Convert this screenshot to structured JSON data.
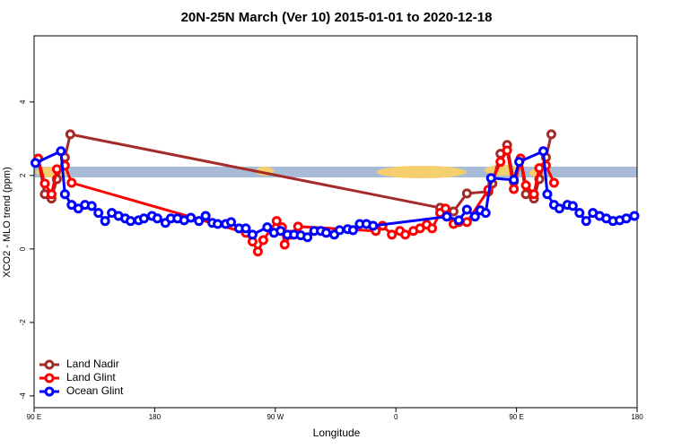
{
  "chart_data": {
    "type": "line",
    "title": "20N-25N March (Ver 10)   2015-01-01 to 2020-12-18",
    "xlabel": "Longitude",
    "ylabel": "XCO2 - MLO trend (ppm)",
    "xlim": [
      90,
      540
    ],
    "ylim": [
      -4.32,
      5.8
    ],
    "xticks": [
      {
        "value": 90,
        "label": "90 E"
      },
      180,
      {
        "value": 270,
        "label": "90 W"
      },
      {
        "value": 360,
        "label": "0"
      },
      {
        "value": 450,
        "label": "90 E"
      },
      {
        "value": 540,
        "label": "180"
      }
    ],
    "yticks": [
      -4,
      -2,
      0,
      2,
      4
    ],
    "legend": "bottom-left",
    "series": [
      {
        "name": "Land Nadir",
        "color": "#a52a2a",
        "x": [
          93,
          98,
          103,
          107,
          113,
          117,
          393,
          403,
          413,
          429,
          432,
          438,
          443,
          448,
          453,
          457,
          463,
          467,
          472,
          476
        ],
        "values": [
          2.46,
          1.49,
          1.37,
          1.9,
          2.49,
          3.12,
          1.12,
          1.02,
          1.51,
          1.56,
          1.78,
          2.59,
          2.83,
          1.83,
          2.46,
          1.49,
          1.37,
          1.9,
          2.49,
          3.12
        ]
      },
      {
        "name": "Land Glint",
        "color": "#ff0000",
        "x": [
          93,
          98,
          103,
          107,
          113,
          118,
          248,
          253,
          257,
          261,
          271,
          275,
          277,
          282,
          287,
          345,
          350,
          357,
          363,
          367,
          373,
          378,
          383,
          387,
          393,
          397,
          403,
          407,
          413,
          429,
          438,
          443,
          448,
          453,
          457,
          463,
          467,
          472,
          478
        ],
        "values": [
          2.46,
          1.78,
          1.49,
          2.17,
          2.27,
          1.8,
          0.44,
          0.2,
          -0.07,
          0.24,
          0.76,
          0.59,
          0.12,
          0.39,
          0.61,
          0.49,
          0.63,
          0.39,
          0.49,
          0.39,
          0.49,
          0.56,
          0.66,
          0.56,
          0.98,
          1.1,
          0.68,
          0.73,
          0.73,
          1.61,
          2.37,
          2.68,
          1.63,
          2.46,
          1.73,
          1.49,
          2.2,
          2.27,
          1.8
        ]
      },
      {
        "name": "Ocean Glint",
        "color": "#0000ff",
        "x": [
          91,
          110,
          113,
          118,
          123,
          128,
          133,
          138,
          143,
          148,
          153,
          158,
          162,
          168,
          172,
          178,
          182,
          188,
          192,
          197,
          202,
          207,
          213,
          218,
          223,
          227,
          233,
          237,
          243,
          248,
          253,
          264,
          269,
          274,
          279,
          284,
          289,
          294,
          299,
          304,
          308,
          314,
          318,
          324,
          328,
          333,
          338,
          343,
          398,
          407,
          413,
          419,
          423,
          427,
          431,
          448,
          452,
          470,
          473,
          478,
          482,
          488,
          492,
          497,
          502,
          507,
          512,
          517,
          522,
          527,
          532,
          538
        ],
        "values": [
          2.34,
          2.66,
          1.49,
          1.2,
          1.1,
          1.2,
          1.17,
          0.98,
          0.76,
          0.98,
          0.9,
          0.83,
          0.76,
          0.78,
          0.83,
          0.9,
          0.83,
          0.71,
          0.83,
          0.83,
          0.78,
          0.85,
          0.76,
          0.9,
          0.71,
          0.68,
          0.68,
          0.73,
          0.56,
          0.56,
          0.39,
          0.59,
          0.44,
          0.49,
          0.39,
          0.39,
          0.37,
          0.32,
          0.49,
          0.49,
          0.44,
          0.39,
          0.51,
          0.54,
          0.51,
          0.68,
          0.68,
          0.63,
          0.88,
          0.78,
          1.07,
          0.88,
          1.05,
          0.98,
          1.93,
          1.88,
          2.37,
          2.66,
          1.49,
          1.2,
          1.1,
          1.2,
          1.17,
          0.98,
          0.76,
          0.98,
          0.9,
          0.83,
          0.76,
          0.78,
          0.83,
          0.9
        ]
      }
    ]
  }
}
